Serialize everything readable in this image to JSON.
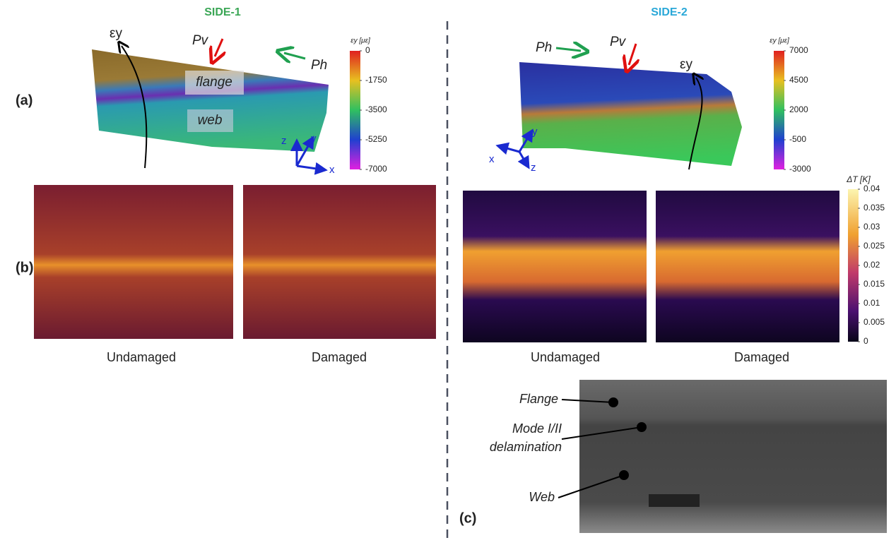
{
  "side1": {
    "title": "SIDE-1",
    "strain": {
      "eps": "εy",
      "pv": "Pv",
      "ph": "Ph",
      "flange": "flange",
      "web": "web",
      "axes": [
        "z",
        "y",
        "x"
      ],
      "colorbar_title": "εy [με]",
      "colorbar_ticks": [
        "0",
        "-1750",
        "-3500",
        "-5250",
        "-7000"
      ]
    },
    "captions": [
      "Undamaged",
      "Damaged"
    ]
  },
  "side2": {
    "title": "SIDE-2",
    "strain": {
      "ph": "Ph",
      "pv": "Pv",
      "eps": "εy",
      "axes": [
        "y",
        "x",
        "z"
      ],
      "colorbar_title": "εy [με]",
      "colorbar_ticks": [
        "7000",
        "4500",
        "2000",
        "-500",
        "-3000"
      ]
    },
    "captions": [
      "Undamaged",
      "Damaged"
    ],
    "thermal_colorbar_title": "ΔT [K]",
    "thermal_colorbar_ticks": [
      "0.04",
      "0.035",
      "0.03",
      "0.025",
      "0.02",
      "0.015",
      "0.01",
      "0.005",
      "0"
    ],
    "photo_labels": [
      "Flange",
      "Mode I/II",
      "delamination",
      "Web"
    ]
  },
  "panel_labels": [
    "(a)",
    "(b)",
    "(c)"
  ]
}
